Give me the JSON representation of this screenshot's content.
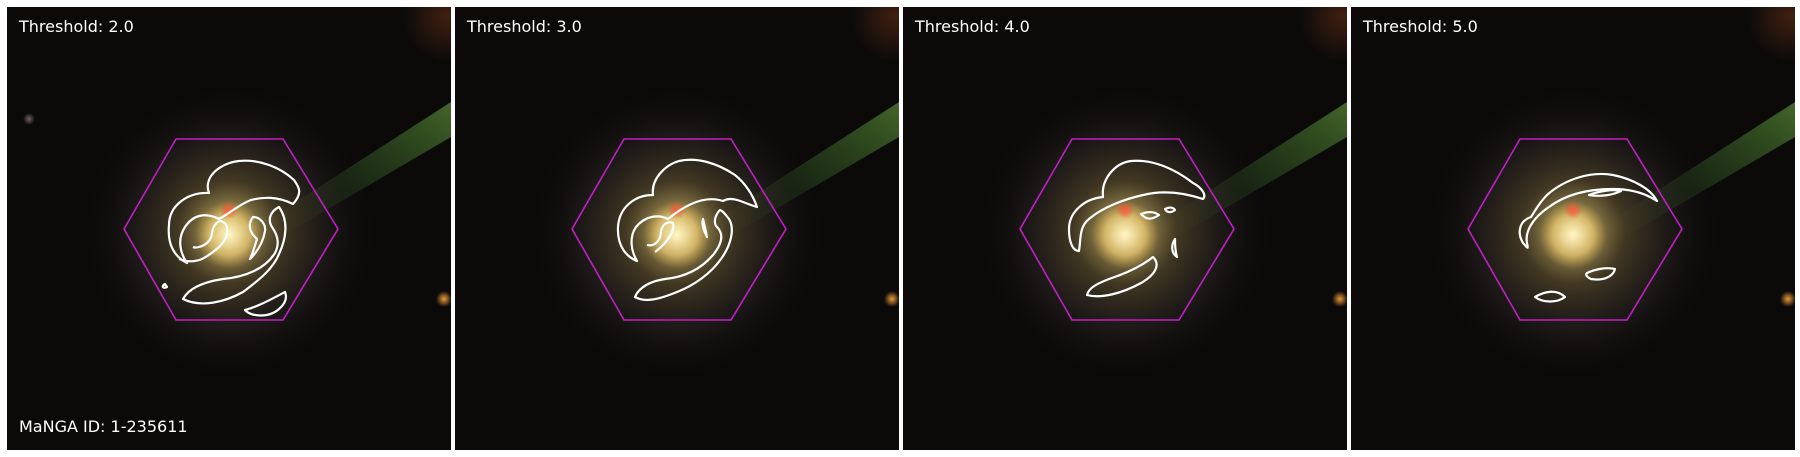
{
  "panels": [
    {
      "label": "Threshold: 2.0"
    },
    {
      "label": "Threshold: 3.0"
    },
    {
      "label": "Threshold: 4.0"
    },
    {
      "label": "Threshold: 5.0"
    }
  ],
  "manga_id": "MaNGA ID: 1-235611",
  "colors": {
    "hexagon": "#c21fc8",
    "contour": "#ffffff",
    "background": "#0b0a09"
  }
}
